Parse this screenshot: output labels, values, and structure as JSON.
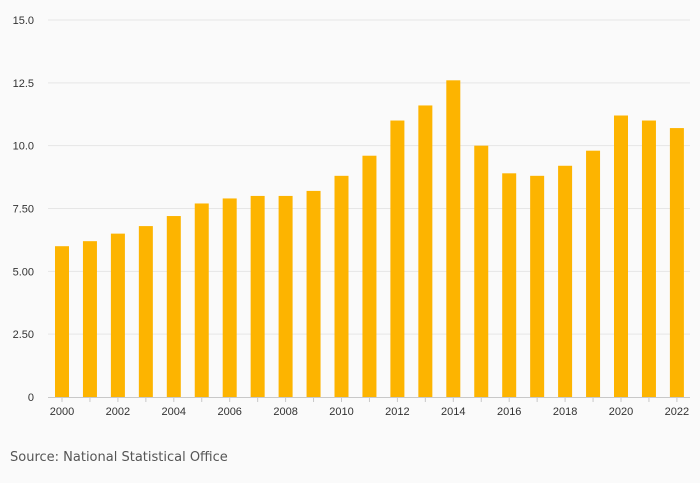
{
  "chart_data": {
    "type": "bar",
    "title": "",
    "xlabel": "",
    "ylabel": "",
    "ylim": [
      0,
      15
    ],
    "yticks": [
      0,
      2.5,
      5,
      7.5,
      10,
      12.5,
      15
    ],
    "ytick_labels": [
      "0",
      "2.50",
      "5.00",
      "7.50",
      "10.0",
      "12.5",
      "15.0"
    ],
    "xtick_labels": [
      "2000",
      "2002",
      "2004",
      "2006",
      "2008",
      "2010",
      "2012",
      "2014",
      "2016",
      "2018",
      "2020",
      "2022"
    ],
    "grid": true,
    "categories": [
      "2000",
      "2001",
      "2002",
      "2003",
      "2004",
      "2005",
      "2006",
      "2007",
      "2008",
      "2009",
      "2010",
      "2011",
      "2012",
      "2013",
      "2014",
      "2015",
      "2016",
      "2017",
      "2018",
      "2019",
      "2020",
      "2021",
      "2022"
    ],
    "values": [
      6.0,
      6.2,
      6.5,
      6.8,
      7.2,
      7.7,
      7.9,
      8.0,
      8.0,
      8.2,
      8.8,
      9.6,
      11.0,
      11.6,
      12.6,
      10.0,
      8.9,
      8.8,
      9.2,
      9.8,
      11.2,
      11.0,
      10.7
    ],
    "bar_color": "#FDB400"
  },
  "source": "Source: National Statistical Office",
  "colors": {
    "background": "#fafafa",
    "grid": "#e6e6e6",
    "axis": "#c8c8c8",
    "text": "#333333"
  }
}
